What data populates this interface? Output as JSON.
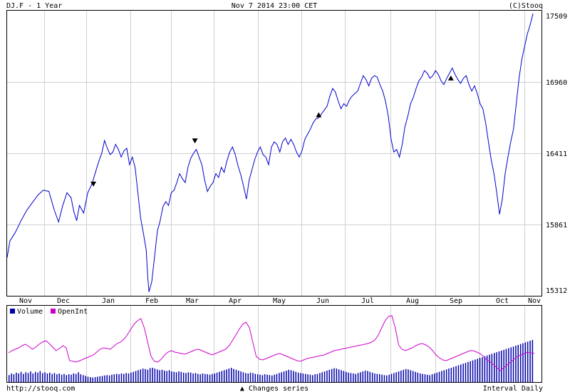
{
  "header": {
    "symbol_title": "DJ.F - 1 Year",
    "datetime": "Nov 7 2014 23:00 CET",
    "copyright": "(C)Stooq"
  },
  "footer": {
    "url": "http://stooq.com",
    "changes_label": "▲ Changes series",
    "interval_label": "Interval Daily"
  },
  "colors": {
    "price_line": "#0000cc",
    "volume": "#0000aa",
    "open_interest": "#cc00cc",
    "grid": "#d0d0d0",
    "frame": "#000000"
  },
  "chart_data": [
    {
      "type": "line",
      "title": "",
      "x_tick_labels": [
        "Nov",
        "Dec",
        "Jan",
        "Feb",
        "Mar",
        "Apr",
        "May",
        "Jun",
        "Jul",
        "Aug",
        "Sep",
        "Oct",
        "Nov"
      ],
      "y_ticks": [
        15312,
        15861,
        16411,
        16960,
        17509
      ],
      "ylim": [
        15312,
        17509
      ],
      "grid": true,
      "series": [
        {
          "points": [
            [
              0,
              15590
            ],
            [
              2,
              15720
            ],
            [
              6,
              15790
            ],
            [
              10,
              15880
            ],
            [
              14,
              15960
            ],
            [
              18,
              16020
            ],
            [
              22,
              16080
            ],
            [
              26,
              16120
            ],
            [
              30,
              16110
            ],
            [
              34,
              15960
            ],
            [
              37,
              15870
            ],
            [
              40,
              16000
            ],
            [
              43,
              16100
            ],
            [
              46,
              16060
            ],
            [
              48,
              15950
            ],
            [
              50,
              15880
            ],
            [
              52,
              16000
            ],
            [
              55,
              15940
            ],
            [
              58,
              16100
            ],
            [
              61,
              16170
            ],
            [
              64,
              16280
            ],
            [
              66,
              16350
            ],
            [
              68,
              16410
            ],
            [
              70,
              16510
            ],
            [
              72,
              16450
            ],
            [
              74,
              16400
            ],
            [
              76,
              16420
            ],
            [
              78,
              16480
            ],
            [
              80,
              16440
            ],
            [
              82,
              16380
            ],
            [
              84,
              16430
            ],
            [
              86,
              16450
            ],
            [
              88,
              16320
            ],
            [
              90,
              16380
            ],
            [
              92,
              16300
            ],
            [
              94,
              16100
            ],
            [
              96,
              15900
            ],
            [
              98,
              15780
            ],
            [
              100,
              15650
            ],
            [
              101,
              15450
            ],
            [
              102,
              15320
            ],
            [
              104,
              15400
            ],
            [
              106,
              15600
            ],
            [
              108,
              15800
            ],
            [
              110,
              15880
            ],
            [
              112,
              15990
            ],
            [
              114,
              16030
            ],
            [
              116,
              16000
            ],
            [
              118,
              16100
            ],
            [
              120,
              16120
            ],
            [
              122,
              16180
            ],
            [
              124,
              16250
            ],
            [
              126,
              16210
            ],
            [
              128,
              16180
            ],
            [
              130,
              16300
            ],
            [
              132,
              16370
            ],
            [
              134,
              16410
            ],
            [
              136,
              16440
            ],
            [
              138,
              16380
            ],
            [
              140,
              16320
            ],
            [
              142,
              16200
            ],
            [
              144,
              16110
            ],
            [
              146,
              16150
            ],
            [
              148,
              16180
            ],
            [
              150,
              16250
            ],
            [
              152,
              16220
            ],
            [
              154,
              16300
            ],
            [
              156,
              16260
            ],
            [
              158,
              16350
            ],
            [
              160,
              16420
            ],
            [
              162,
              16460
            ],
            [
              164,
              16400
            ],
            [
              166,
              16310
            ],
            [
              168,
              16240
            ],
            [
              170,
              16150
            ],
            [
              172,
              16050
            ],
            [
              174,
              16200
            ],
            [
              176,
              16280
            ],
            [
              178,
              16360
            ],
            [
              180,
              16420
            ],
            [
              182,
              16460
            ],
            [
              184,
              16400
            ],
            [
              186,
              16380
            ],
            [
              188,
              16320
            ],
            [
              190,
              16460
            ],
            [
              192,
              16500
            ],
            [
              194,
              16480
            ],
            [
              196,
              16420
            ],
            [
              198,
              16500
            ],
            [
              200,
              16530
            ],
            [
              202,
              16480
            ],
            [
              204,
              16520
            ],
            [
              206,
              16480
            ],
            [
              208,
              16420
            ],
            [
              210,
              16380
            ],
            [
              212,
              16430
            ],
            [
              214,
              16520
            ],
            [
              216,
              16560
            ],
            [
              218,
              16600
            ],
            [
              220,
              16650
            ],
            [
              222,
              16680
            ],
            [
              224,
              16690
            ],
            [
              226,
              16720
            ],
            [
              228,
              16750
            ],
            [
              230,
              16780
            ],
            [
              232,
              16860
            ],
            [
              234,
              16920
            ],
            [
              236,
              16890
            ],
            [
              238,
              16820
            ],
            [
              240,
              16760
            ],
            [
              242,
              16800
            ],
            [
              244,
              16780
            ],
            [
              246,
              16830
            ],
            [
              248,
              16860
            ],
            [
              250,
              16880
            ],
            [
              252,
              16900
            ],
            [
              254,
              16960
            ],
            [
              256,
              17020
            ],
            [
              258,
              16990
            ],
            [
              260,
              16940
            ],
            [
              262,
              17000
            ],
            [
              264,
              17020
            ],
            [
              266,
              17010
            ],
            [
              268,
              16950
            ],
            [
              270,
              16900
            ],
            [
              272,
              16820
            ],
            [
              274,
              16700
            ],
            [
              276,
              16520
            ],
            [
              278,
              16420
            ],
            [
              280,
              16440
            ],
            [
              282,
              16380
            ],
            [
              284,
              16480
            ],
            [
              286,
              16620
            ],
            [
              288,
              16700
            ],
            [
              290,
              16800
            ],
            [
              292,
              16850
            ],
            [
              294,
              16920
            ],
            [
              296,
              16980
            ],
            [
              298,
              17010
            ],
            [
              300,
              17060
            ],
            [
              302,
              17040
            ],
            [
              304,
              17000
            ],
            [
              306,
              17020
            ],
            [
              308,
              17060
            ],
            [
              310,
              17030
            ],
            [
              312,
              16980
            ],
            [
              314,
              16950
            ],
            [
              316,
              17000
            ],
            [
              318,
              17040
            ],
            [
              320,
              17080
            ],
            [
              322,
              17030
            ],
            [
              324,
              16990
            ],
            [
              326,
              16960
            ],
            [
              328,
              17000
            ],
            [
              330,
              17020
            ],
            [
              332,
              16950
            ],
            [
              334,
              16900
            ],
            [
              336,
              16940
            ],
            [
              338,
              16880
            ],
            [
              340,
              16800
            ],
            [
              342,
              16760
            ],
            [
              344,
              16650
            ],
            [
              346,
              16500
            ],
            [
              348,
              16360
            ],
            [
              350,
              16250
            ],
            [
              352,
              16100
            ],
            [
              354,
              15930
            ],
            [
              356,
              16050
            ],
            [
              358,
              16250
            ],
            [
              360,
              16380
            ],
            [
              362,
              16500
            ],
            [
              364,
              16600
            ],
            [
              366,
              16800
            ],
            [
              368,
              17000
            ],
            [
              370,
              17150
            ],
            [
              372,
              17250
            ],
            [
              374,
              17350
            ],
            [
              376,
              17420
            ],
            [
              378,
              17509
            ]
          ]
        }
      ],
      "markers": [
        {
          "x": 62,
          "y": 16170,
          "direction": "down"
        },
        {
          "x": 135,
          "y": 16510,
          "direction": "down"
        },
        {
          "x": 224,
          "y": 16710,
          "direction": "up"
        },
        {
          "x": 319,
          "y": 17000,
          "direction": "up"
        }
      ]
    },
    {
      "type": "bar",
      "title": "",
      "legend": [
        "Volume",
        "OpenInt"
      ],
      "legend_position": "top-left",
      "series": [
        {
          "name": "Volume",
          "values": [
            10,
            14,
            12,
            16,
            14,
            18,
            13,
            17,
            15,
            19,
            14,
            18,
            16,
            20,
            15,
            17,
            14,
            16,
            13,
            15,
            12,
            14,
            11,
            13,
            10,
            12,
            11,
            14,
            13,
            17,
            12,
            10,
            8,
            6,
            5,
            4,
            5,
            6,
            7,
            8,
            9,
            10,
            9,
            11,
            12,
            13,
            12,
            14,
            13,
            15,
            14,
            16,
            18,
            20,
            22,
            24,
            26,
            25,
            23,
            27,
            28,
            26,
            24,
            22,
            23,
            21,
            20,
            22,
            19,
            18,
            17,
            19,
            18,
            16,
            15,
            17,
            16,
            14,
            15,
            13,
            12,
            14,
            13,
            12,
            11,
            13,
            14,
            16,
            18,
            20,
            22,
            24,
            26,
            28,
            25,
            23,
            21,
            19,
            17,
            15,
            14,
            16,
            15,
            13,
            12,
            11,
            10,
            12,
            11,
            10,
            9,
            11,
            13,
            15,
            17,
            19,
            21,
            23,
            22,
            20,
            18,
            16,
            15,
            14,
            13,
            12,
            11,
            10,
            12,
            13,
            15,
            17,
            19,
            21,
            23,
            25,
            27,
            26,
            24,
            22,
            20,
            18,
            16,
            15,
            14,
            13,
            15,
            17,
            19,
            21,
            20,
            18,
            16,
            14,
            13,
            12,
            11,
            10,
            9,
            11,
            13,
            15,
            17,
            19,
            21,
            23,
            25,
            24,
            22,
            20,
            18,
            16,
            14,
            13,
            12,
            11,
            10,
            12,
            14,
            16,
            18,
            20,
            22,
            24,
            26,
            28,
            30,
            32,
            34,
            36,
            38,
            40,
            42,
            44,
            46,
            48,
            50,
            52,
            54,
            56,
            58,
            60,
            62,
            64,
            66,
            68,
            70,
            72,
            74,
            76,
            78,
            80,
            82,
            84,
            86,
            88,
            90,
            92,
            94,
            96
          ],
          "note_unit": "relative"
        },
        {
          "name": "OpenInt",
          "values": []
        }
      ]
    }
  ]
}
